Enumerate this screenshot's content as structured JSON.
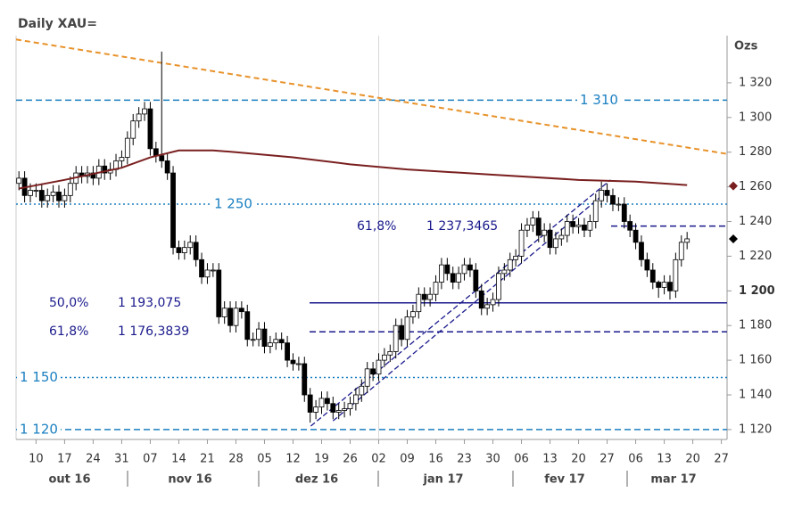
{
  "chart_data": {
    "type": "candlestick",
    "title": "Daily XAU=",
    "y_unit": "Ozs",
    "xlim": [
      1.5,
      126
    ],
    "ylim": [
      1114.3,
      1347.2
    ],
    "xticks": [
      {
        "value": 5,
        "label": "10"
      },
      {
        "value": 10,
        "label": "17"
      },
      {
        "value": 15,
        "label": "24"
      },
      {
        "value": 20,
        "label": "31"
      },
      {
        "value": 25,
        "label": "07"
      },
      {
        "value": 30,
        "label": "14"
      },
      {
        "value": 35,
        "label": "21"
      },
      {
        "value": 40,
        "label": "28"
      },
      {
        "value": 45,
        "label": "05"
      },
      {
        "value": 50,
        "label": "12"
      },
      {
        "value": 55,
        "label": "19"
      },
      {
        "value": 60,
        "label": "26"
      },
      {
        "value": 65,
        "label": "02"
      },
      {
        "value": 70,
        "label": "09"
      },
      {
        "value": 75,
        "label": "16"
      },
      {
        "value": 80,
        "label": "23"
      },
      {
        "value": 85,
        "label": "30"
      },
      {
        "value": 90,
        "label": "06"
      },
      {
        "value": 95,
        "label": "13"
      },
      {
        "value": 100,
        "label": "20"
      },
      {
        "value": 105,
        "label": "27"
      },
      {
        "value": 110,
        "label": "06"
      },
      {
        "value": 115,
        "label": "13"
      },
      {
        "value": 120,
        "label": "20"
      },
      {
        "value": 125,
        "label": "27"
      }
    ],
    "months": [
      "out 16",
      "nov 16",
      "dez 16",
      "jan 17",
      "fev 17",
      "mar 17"
    ],
    "yticks": [
      {
        "value": 1120,
        "label": "1 120"
      },
      {
        "value": 1140,
        "label": "1 140"
      },
      {
        "value": 1160,
        "label": "1 160"
      },
      {
        "value": 1180,
        "label": "1 180"
      },
      {
        "value": 1200,
        "label": "1 200"
      },
      {
        "value": 1220,
        "label": "1 220"
      },
      {
        "value": 1240,
        "label": "1 240"
      },
      {
        "value": 1260,
        "label": "1 260"
      },
      {
        "value": 1280,
        "label": "1 280"
      },
      {
        "value": 1300,
        "label": "1 300"
      },
      {
        "value": 1320,
        "label": "1 320"
      }
    ],
    "vline": 65,
    "x": [
      2,
      3,
      4,
      5,
      6,
      7,
      8,
      9,
      10,
      11,
      12,
      13,
      14,
      15,
      16,
      17,
      18,
      19,
      20,
      21,
      22,
      23,
      24,
      25,
      26,
      27,
      28,
      29,
      30,
      31,
      32,
      33,
      34,
      35,
      36,
      37,
      38,
      39,
      40,
      41,
      42,
      43,
      44,
      45,
      46,
      47,
      48,
      49,
      50,
      51,
      52,
      53,
      54,
      55,
      56,
      57,
      58,
      59,
      60,
      61,
      62,
      63,
      64,
      65,
      66,
      67,
      68,
      69,
      70,
      71,
      72,
      73,
      74,
      75,
      76,
      77,
      78,
      79,
      80,
      81,
      82,
      83,
      84,
      85,
      86,
      87,
      88,
      89,
      90,
      91,
      92,
      93,
      94,
      95,
      96,
      97,
      98,
      99,
      100,
      101,
      102,
      103,
      104,
      105,
      106,
      107,
      108,
      109,
      110,
      111,
      112,
      113,
      114,
      115,
      116,
      117,
      118,
      119
    ],
    "open": [
      1262,
      1265,
      1255,
      1258,
      1258,
      1252,
      1255,
      1257,
      1252,
      1255,
      1262,
      1268,
      1266,
      1268,
      1265,
      1272,
      1268,
      1270,
      1275,
      1277,
      1288,
      1298,
      1302,
      1305,
      1282,
      1278,
      1275,
      1268,
      1225,
      1222,
      1225,
      1228,
      1218,
      1208,
      1212,
      1212,
      1185,
      1190,
      1180,
      1190,
      1188,
      1172,
      1172,
      1178,
      1168,
      1170,
      1172,
      1170,
      1160,
      1158,
      1158,
      1140,
      1130,
      1133,
      1138,
      1135,
      1130,
      1131,
      1132,
      1135,
      1140,
      1145,
      1155,
      1152,
      1160,
      1163,
      1165,
      1180,
      1172,
      1185,
      1188,
      1198,
      1195,
      1198,
      1205,
      1215,
      1210,
      1205,
      1210,
      1215,
      1212,
      1200,
      1190,
      1192,
      1195,
      1210,
      1212,
      1218,
      1220,
      1235,
      1238,
      1242,
      1232,
      1235,
      1225,
      1230,
      1232,
      1240,
      1237,
      1238,
      1235,
      1240,
      1252,
      1258,
      1255,
      1250,
      1250,
      1240,
      1235,
      1228,
      1218,
      1212,
      1205,
      1202,
      1205,
      1200,
      1218,
      1228
    ],
    "high": [
      1269,
      1269,
      1262,
      1262,
      1262,
      1259,
      1261,
      1261,
      1259,
      1266,
      1272,
      1272,
      1272,
      1272,
      1276,
      1276,
      1274,
      1279,
      1281,
      1292,
      1302,
      1306,
      1309,
      1309,
      1286,
      1338,
      1279,
      1272,
      1229,
      1229,
      1232,
      1232,
      1222,
      1216,
      1216,
      1216,
      1194,
      1194,
      1194,
      1194,
      1192,
      1176,
      1182,
      1182,
      1174,
      1176,
      1176,
      1174,
      1164,
      1162,
      1162,
      1144,
      1137,
      1142,
      1142,
      1139,
      1135,
      1136,
      1139,
      1144,
      1149,
      1159,
      1159,
      1164,
      1167,
      1169,
      1184,
      1184,
      1189,
      1192,
      1202,
      1202,
      1202,
      1209,
      1219,
      1219,
      1214,
      1214,
      1219,
      1219,
      1216,
      1204,
      1196,
      1199,
      1214,
      1216,
      1222,
      1224,
      1239,
      1242,
      1246,
      1246,
      1239,
      1239,
      1234,
      1236,
      1244,
      1244,
      1242,
      1242,
      1244,
      1256,
      1263,
      1262,
      1259,
      1254,
      1254,
      1244,
      1239,
      1232,
      1222,
      1216,
      1206,
      1209,
      1209,
      1222,
      1232,
      1234
    ],
    "low": [
      1258,
      1251,
      1251,
      1254,
      1248,
      1248,
      1251,
      1248,
      1248,
      1251,
      1258,
      1262,
      1262,
      1261,
      1261,
      1264,
      1264,
      1266,
      1271,
      1273,
      1284,
      1294,
      1298,
      1278,
      1274,
      1271,
      1264,
      1221,
      1218,
      1218,
      1221,
      1214,
      1204,
      1204,
      1208,
      1181,
      1181,
      1176,
      1176,
      1184,
      1168,
      1168,
      1168,
      1164,
      1164,
      1166,
      1166,
      1156,
      1154,
      1154,
      1136,
      1124,
      1126,
      1129,
      1131,
      1126,
      1126,
      1127,
      1128,
      1131,
      1136,
      1141,
      1148,
      1148,
      1156,
      1159,
      1161,
      1168,
      1168,
      1181,
      1184,
      1191,
      1191,
      1194,
      1201,
      1206,
      1201,
      1201,
      1206,
      1208,
      1196,
      1186,
      1186,
      1188,
      1191,
      1206,
      1208,
      1214,
      1216,
      1231,
      1234,
      1228,
      1228,
      1221,
      1221,
      1226,
      1228,
      1233,
      1233,
      1231,
      1231,
      1236,
      1248,
      1251,
      1246,
      1246,
      1236,
      1231,
      1224,
      1214,
      1208,
      1201,
      1196,
      1198,
      1195,
      1196,
      1214,
      1224
    ],
    "close": [
      1265,
      1255,
      1258,
      1258,
      1252,
      1255,
      1257,
      1252,
      1255,
      1262,
      1268,
      1266,
      1268,
      1265,
      1272,
      1268,
      1270,
      1275,
      1277,
      1288,
      1298,
      1302,
      1305,
      1282,
      1278,
      1275,
      1268,
      1225,
      1222,
      1225,
      1228,
      1218,
      1208,
      1212,
      1212,
      1185,
      1190,
      1180,
      1190,
      1188,
      1172,
      1172,
      1178,
      1168,
      1170,
      1172,
      1170,
      1160,
      1158,
      1158,
      1140,
      1130,
      1133,
      1138,
      1135,
      1130,
      1131,
      1132,
      1135,
      1140,
      1145,
      1155,
      1152,
      1160,
      1163,
      1165,
      1180,
      1172,
      1185,
      1188,
      1198,
      1195,
      1198,
      1205,
      1215,
      1210,
      1205,
      1210,
      1215,
      1212,
      1200,
      1190,
      1192,
      1195,
      1210,
      1212,
      1218,
      1220,
      1235,
      1238,
      1242,
      1232,
      1235,
      1225,
      1230,
      1232,
      1240,
      1237,
      1238,
      1235,
      1240,
      1252,
      1258,
      1255,
      1250,
      1250,
      1240,
      1235,
      1228,
      1218,
      1212,
      1205,
      1202,
      1205,
      1200,
      1218,
      1228,
      1230
    ],
    "moving_average": {
      "color": "#7a1f1f",
      "x": [
        2,
        10,
        20,
        25,
        30,
        36,
        40,
        50,
        60,
        70,
        85,
        100,
        110,
        119
      ],
      "values": [
        1259,
        1264,
        1271,
        1277,
        1281,
        1281,
        1280,
        1277,
        1273,
        1270,
        1267,
        1264,
        1263,
        1261
      ]
    },
    "trendline": {
      "color": "#e8922a",
      "x": [
        1.5,
        126
      ],
      "values": [
        1345,
        1279
      ]
    },
    "channel": {
      "color": "#1a1a8c",
      "lines": [
        {
          "x": [
            53.1,
            105.6
          ],
          "values": [
            1122,
            1264
          ]
        },
        {
          "x": [
            57,
            104.5
          ],
          "values": [
            1125,
            1256
          ]
        }
      ]
    },
    "levels": [
      {
        "value": 1310,
        "label": "1 310",
        "style": "dashed"
      },
      {
        "value": 1250,
        "label": "1 250",
        "style": "dotted"
      },
      {
        "value": 1150,
        "label": "1 150",
        "style": "dotted"
      },
      {
        "value": 1120,
        "label": "1 120",
        "style": "dashed"
      }
    ],
    "fib_levels": [
      {
        "pct": "50,0%",
        "value": 1193.075,
        "label": "1 193,075",
        "style": "solid"
      },
      {
        "pct": "61,8%",
        "value": 1176.3839,
        "label": "1 176,3839",
        "style": "dashed"
      },
      {
        "pct": "61,8%",
        "value": 1237.3465,
        "label": "1 237,3465",
        "style": "dashed"
      }
    ],
    "last_values": [
      {
        "value": 1260.5,
        "color": "#7a1f1f"
      },
      {
        "value": 1230,
        "color": "#000000"
      }
    ]
  }
}
